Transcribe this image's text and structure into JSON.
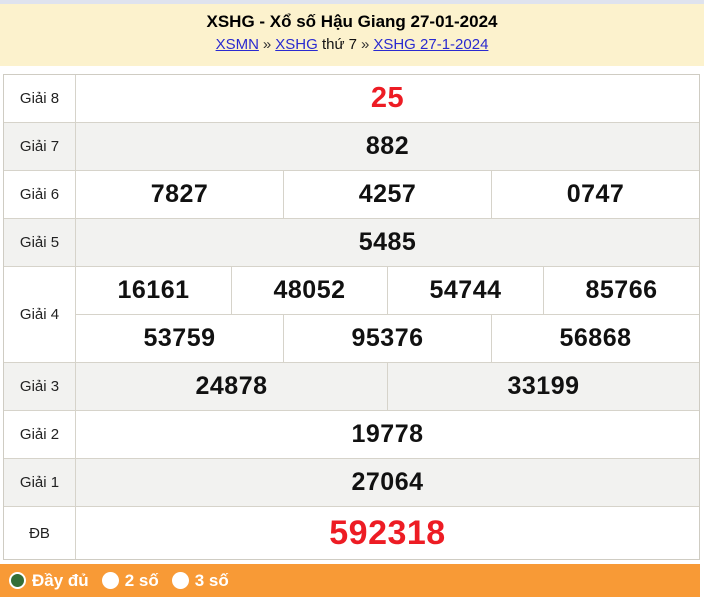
{
  "colors": {
    "header_bg": "#fcf2cd",
    "top_strip": "#dfe3ee",
    "accent_red": "#ed1c24",
    "footer_orange": "#f89a36",
    "radio_selected_green": "#346f37",
    "link_blue": "#2a2ad0",
    "row_shade": "#f2f2f0",
    "border": "#d6d3ca"
  },
  "header": {
    "title": "XSHG - Xổ số Hậu Giang 27-01-2024",
    "breadcrumb": [
      {
        "text": "XSMN",
        "link": true
      },
      {
        "text": "»",
        "link": false
      },
      {
        "text": "XSHG",
        "link": true
      },
      {
        "text": "thứ 7",
        "link": false
      },
      {
        "text": "»",
        "link": false
      },
      {
        "text": "XSHG 27-1-2024",
        "link": true
      }
    ]
  },
  "table": {
    "rows": [
      {
        "label": "Giải 8",
        "style": "red-large",
        "shaded": false,
        "lines": [
          [
            "25"
          ]
        ]
      },
      {
        "label": "Giải 7",
        "style": "normal",
        "shaded": true,
        "lines": [
          [
            "882"
          ]
        ]
      },
      {
        "label": "Giải 6",
        "style": "normal",
        "shaded": false,
        "lines": [
          [
            "7827",
            "4257",
            "0747"
          ]
        ]
      },
      {
        "label": "Giải 5",
        "style": "normal",
        "shaded": true,
        "lines": [
          [
            "5485"
          ]
        ]
      },
      {
        "label": "Giải 4",
        "style": "normal",
        "shaded": false,
        "lines": [
          [
            "16161",
            "48052",
            "54744",
            "85766"
          ],
          [
            "53759",
            "95376",
            "56868"
          ]
        ]
      },
      {
        "label": "Giải 3",
        "style": "normal",
        "shaded": true,
        "lines": [
          [
            "24878",
            "33199"
          ]
        ]
      },
      {
        "label": "Giải 2",
        "style": "normal",
        "shaded": false,
        "lines": [
          [
            "19778"
          ]
        ]
      },
      {
        "label": "Giải 1",
        "style": "normal",
        "shaded": true,
        "lines": [
          [
            "27064"
          ]
        ]
      },
      {
        "label": "ĐB",
        "style": "red-xlarge",
        "shaded": false,
        "lines": [
          [
            "592318"
          ]
        ]
      }
    ]
  },
  "footer": {
    "options": [
      {
        "label": "Đầy đủ",
        "selected": true
      },
      {
        "label": "2 số",
        "selected": false
      },
      {
        "label": "3 số",
        "selected": false
      }
    ]
  }
}
